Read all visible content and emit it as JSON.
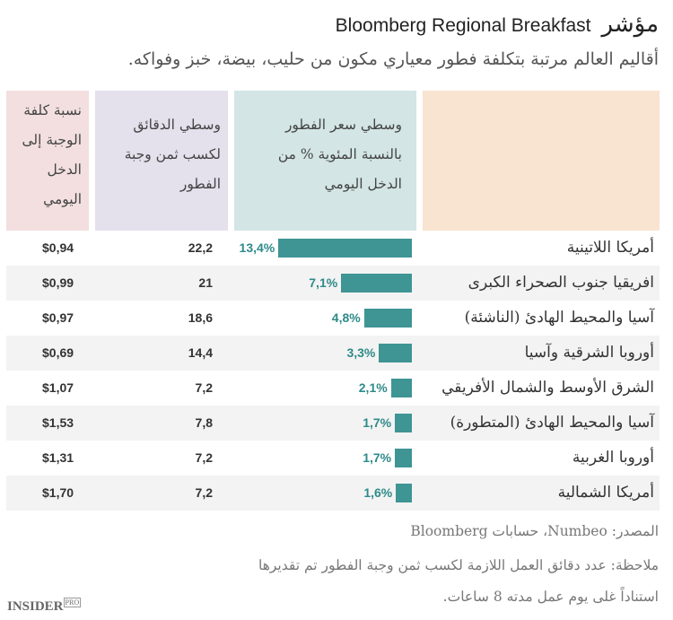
{
  "header": {
    "title_ar": "مؤشر",
    "title_en": "Bloomberg Regional Breakfast",
    "subtitle": "أقاليم العالم مرتبة بتكلفة فطور معياري مكون من حليب، بيضة، خبز وفواكه."
  },
  "chart_data": {
    "type": "table",
    "columns": [
      "نسبة كلفة الوجبة إلى الدخل اليومي",
      "وسطي الدقائق لكسب ثمن وجبة الفطور",
      "وسطي سعر الفطور بالنسبة المئوية % من الدخل اليومي",
      ""
    ],
    "rows": [
      {
        "region": "أمريكا اللاتينية",
        "pct": 13.4,
        "pct_label": "13,4%",
        "minutes": "22,2",
        "ratio": "$0,94"
      },
      {
        "region": "افريقيا جنوب الصحراء الكبرى",
        "pct": 7.1,
        "pct_label": "7,1%",
        "minutes": "21",
        "ratio": "$0,99"
      },
      {
        "region": "آسيا والمحيط الهادئ (الناشئة)",
        "pct": 4.8,
        "pct_label": "4,8%",
        "minutes": "18,6",
        "ratio": "$0,97"
      },
      {
        "region": "أوروبا الشرقية وآسيا",
        "pct": 3.3,
        "pct_label": "3,3%",
        "minutes": "14,4",
        "ratio": "$0,69"
      },
      {
        "region": "الشرق الأوسط والشمال الأفريقي",
        "pct": 2.1,
        "pct_label": "2,1%",
        "minutes": "7,2",
        "ratio": "$1,07"
      },
      {
        "region": "آسيا والمحيط الهادئ (المتطورة)",
        "pct": 1.7,
        "pct_label": "1,7%",
        "minutes": "7,8",
        "ratio": "$1,53"
      },
      {
        "region": "أوروبا الغربية",
        "pct": 1.7,
        "pct_label": "1,7%",
        "minutes": "7,2",
        "ratio": "$1,31"
      },
      {
        "region": "أمريكا الشمالية",
        "pct": 1.6,
        "pct_label": "1,6%",
        "minutes": "7,2",
        "ratio": "$1,70"
      }
    ]
  },
  "colors": {
    "bar": "#3f9494"
  },
  "footer": {
    "source": "المصدر: Numbeo، حسابات Bloomberg",
    "note1": "ملاحظة: عدد دقائق العمل اللازمة لكسب ثمن وجبة الفطور تم تقديرها",
    "note2": "استناداً غلى يوم عمل مدته 8 ساعات.",
    "logo": "INSIDER",
    "logo_sup": "PRO"
  }
}
